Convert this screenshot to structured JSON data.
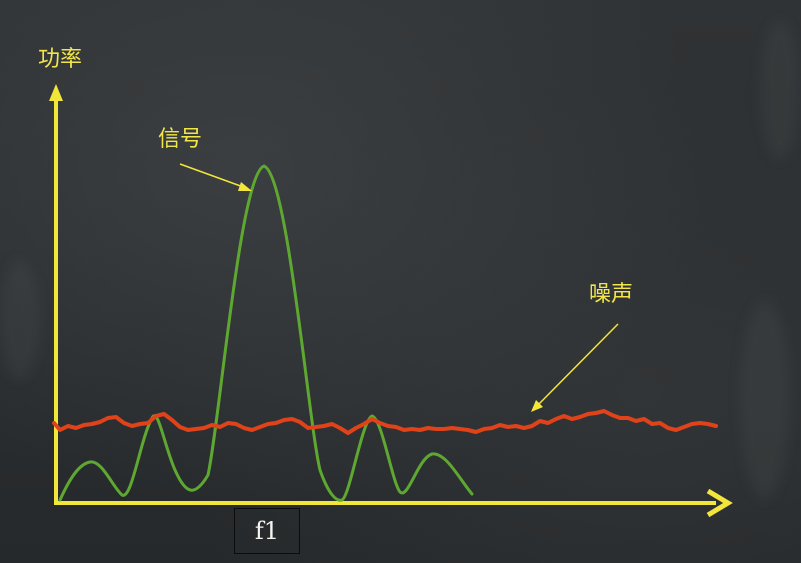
{
  "labels": {
    "y_axis": "功率",
    "signal": "信号",
    "noise": "噪声",
    "frequency_marker": "f1"
  },
  "colors": {
    "background": "#2b2e30",
    "axis": "#f3e63a",
    "label": "#f2e64a",
    "signal_curve": "#5ea832",
    "noise_curve": "#e0421a",
    "marker_text": "#f4f4f0"
  }
}
